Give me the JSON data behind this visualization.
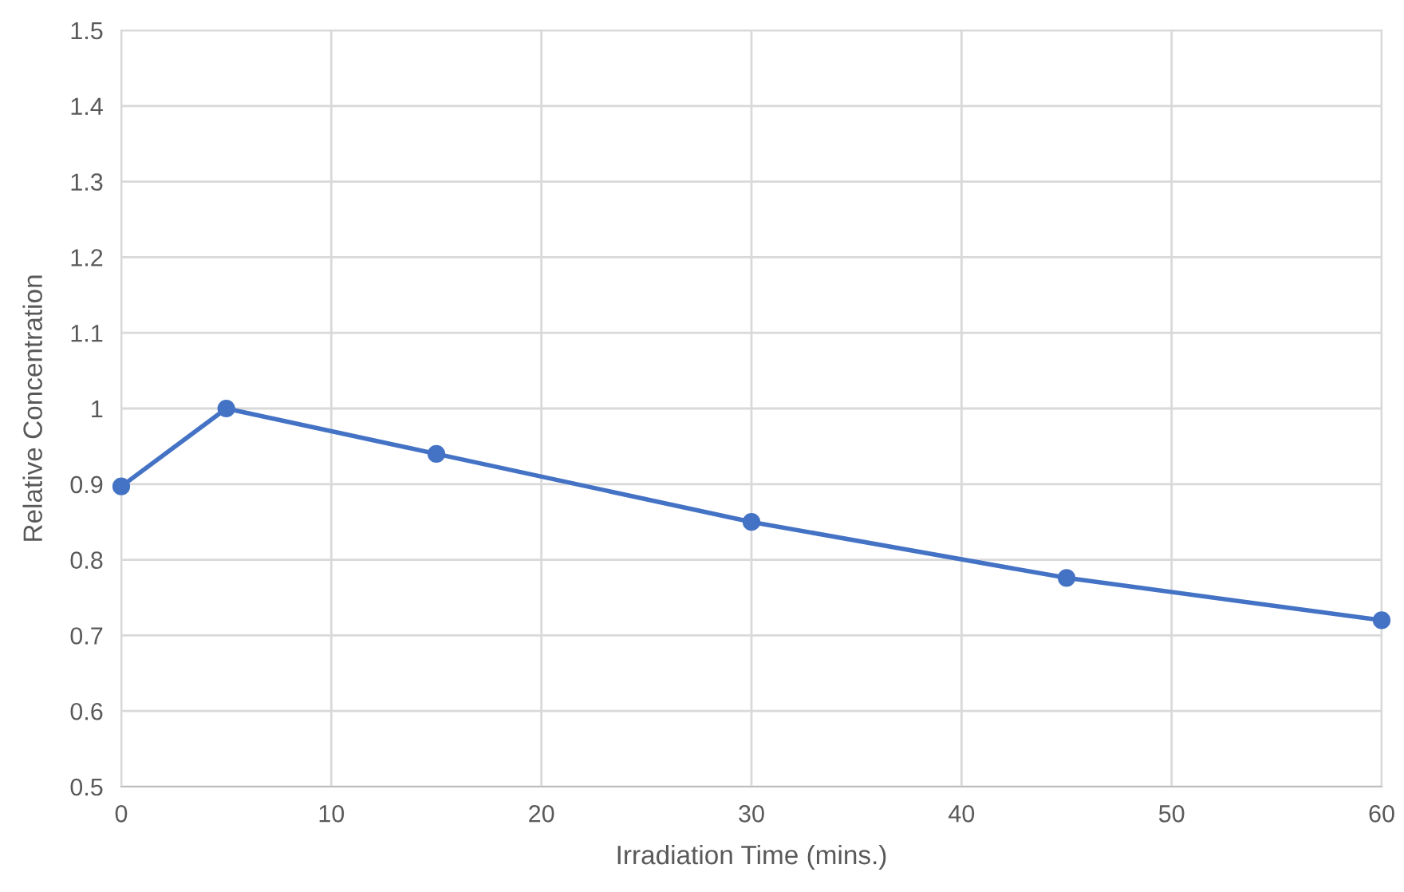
{
  "chart_data": {
    "type": "line",
    "xlabel": "Irradiation Time (mins.)",
    "ylabel": "Relative Concentration",
    "x": [
      0,
      5,
      15,
      30,
      45,
      60
    ],
    "series": [
      {
        "color": "#4472c4",
        "values": [
          0.897,
          1.0,
          0.94,
          0.85,
          0.776,
          0.72
        ]
      }
    ],
    "xlim": [
      0,
      60
    ],
    "xticks": [
      0,
      10,
      20,
      30,
      40,
      50,
      60
    ],
    "ylim": [
      0.5,
      1.5
    ],
    "yticks": [
      {
        "value": 0.5,
        "label": "0.5"
      },
      {
        "value": 0.6,
        "label": "0.6"
      },
      {
        "value": 0.7,
        "label": "0.7"
      },
      {
        "value": 0.8,
        "label": "0.8"
      },
      {
        "value": 0.9,
        "label": "0.9"
      },
      {
        "value": 1,
        "label": "1"
      },
      {
        "value": 1.1,
        "label": "1.1"
      },
      {
        "value": 1.2,
        "label": "1.2"
      },
      {
        "value": 1.3,
        "label": "1.3"
      },
      {
        "value": 1.4,
        "label": "1.4"
      },
      {
        "value": 1.5,
        "label": "1.5"
      }
    ],
    "grid": true,
    "marker": "circle",
    "line_style": "solid"
  }
}
